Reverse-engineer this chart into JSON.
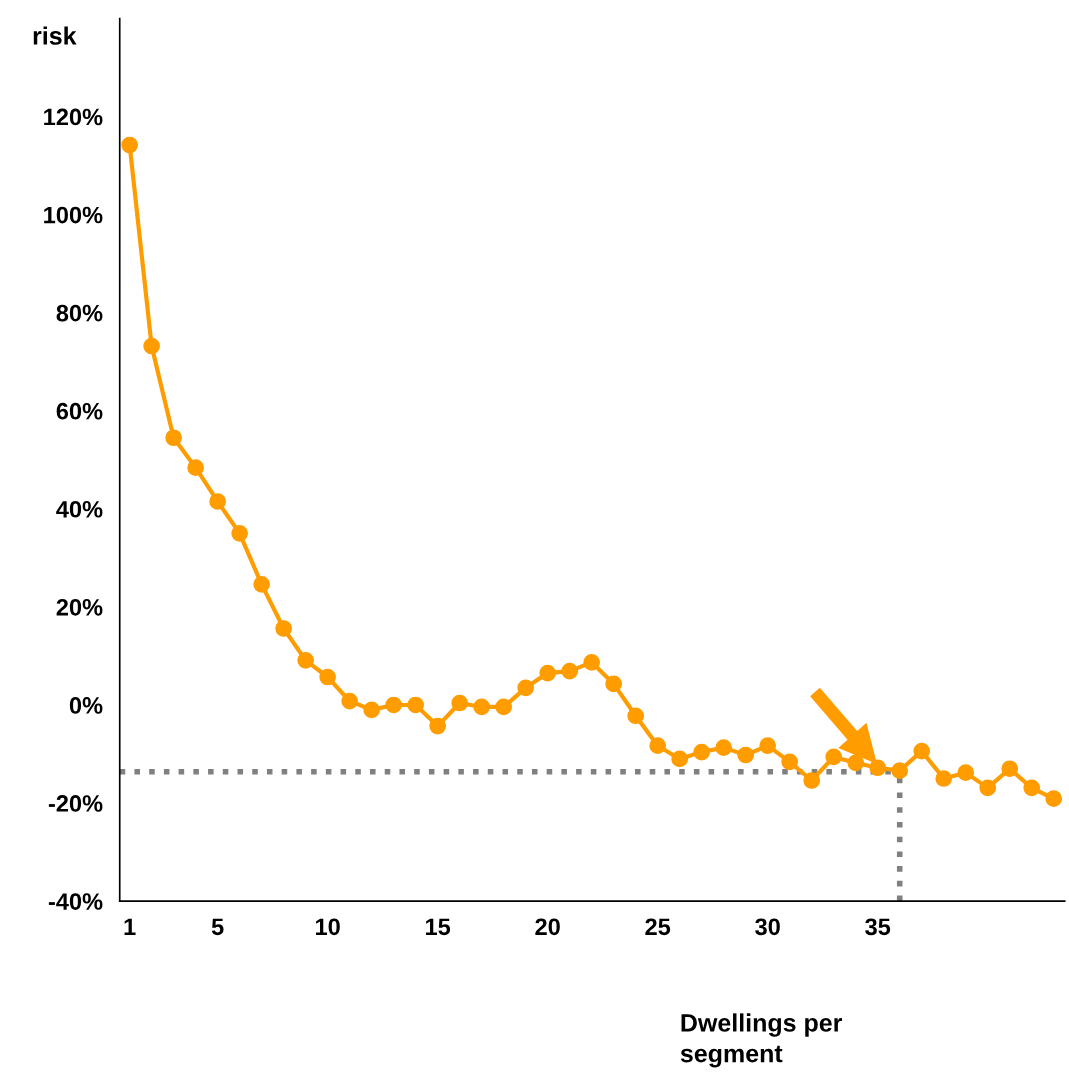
{
  "chart_data": {
    "type": "line",
    "ylabel": "risk",
    "xlabel": "Dwellings per\nsegment",
    "x": [
      1,
      2,
      3,
      4,
      5,
      6,
      7,
      8,
      9,
      10,
      11,
      12,
      13,
      14,
      15,
      16,
      17,
      18,
      19,
      20,
      21,
      22,
      23,
      24,
      25,
      26,
      27,
      28,
      29,
      30,
      31,
      32,
      33,
      34,
      35,
      36,
      37,
      38,
      39,
      40,
      41,
      42,
      43
    ],
    "series": [
      {
        "color": "#ff9c00",
        "values": [
          114.2,
          73.2,
          54.5,
          48.4,
          41.5,
          35.0,
          24.6,
          15.6,
          9.1,
          5.7,
          0.8,
          -1.0,
          0,
          0,
          -4.3,
          0.4,
          -0.4,
          -0.4,
          3.5,
          6.5,
          6.9,
          8.7,
          4.3,
          -2.2,
          -8.3,
          -11.0,
          -9.6,
          -8.7,
          -10.2,
          -8.3,
          -11.6,
          -15.4,
          -10.6,
          -11.8,
          -12.8,
          -13.4,
          -9.4,
          -15.0,
          -13.8,
          -16.9,
          -13.0,
          -16.9,
          -19.1
        ]
      }
    ],
    "xlim": [
      0.55,
      43.5
    ],
    "xticks": [
      1,
      5,
      10,
      15,
      20,
      25,
      30,
      35
    ],
    "ylim": [
      -40,
      140
    ],
    "yticks": [
      {
        "value": -40,
        "label": "-40%"
      },
      {
        "value": -20,
        "label": "-20%"
      },
      {
        "value": 0,
        "label": "0%"
      },
      {
        "value": 20,
        "label": "20%"
      },
      {
        "value": 40,
        "label": "40%"
      },
      {
        "value": 60,
        "label": "60%"
      },
      {
        "value": 80,
        "label": "80%"
      },
      {
        "value": 100,
        "label": "100%"
      },
      {
        "value": 120,
        "label": "120%"
      }
    ],
    "ref_lines": [
      {
        "axis": "y",
        "value": -13.6,
        "color": "#808080",
        "line_style": "dotted"
      },
      {
        "axis": "x",
        "value": 36,
        "color": "#808080",
        "line_style": "dotted"
      }
    ],
    "grid": false,
    "legend": false,
    "marker": "circle",
    "line_style": "solid"
  }
}
